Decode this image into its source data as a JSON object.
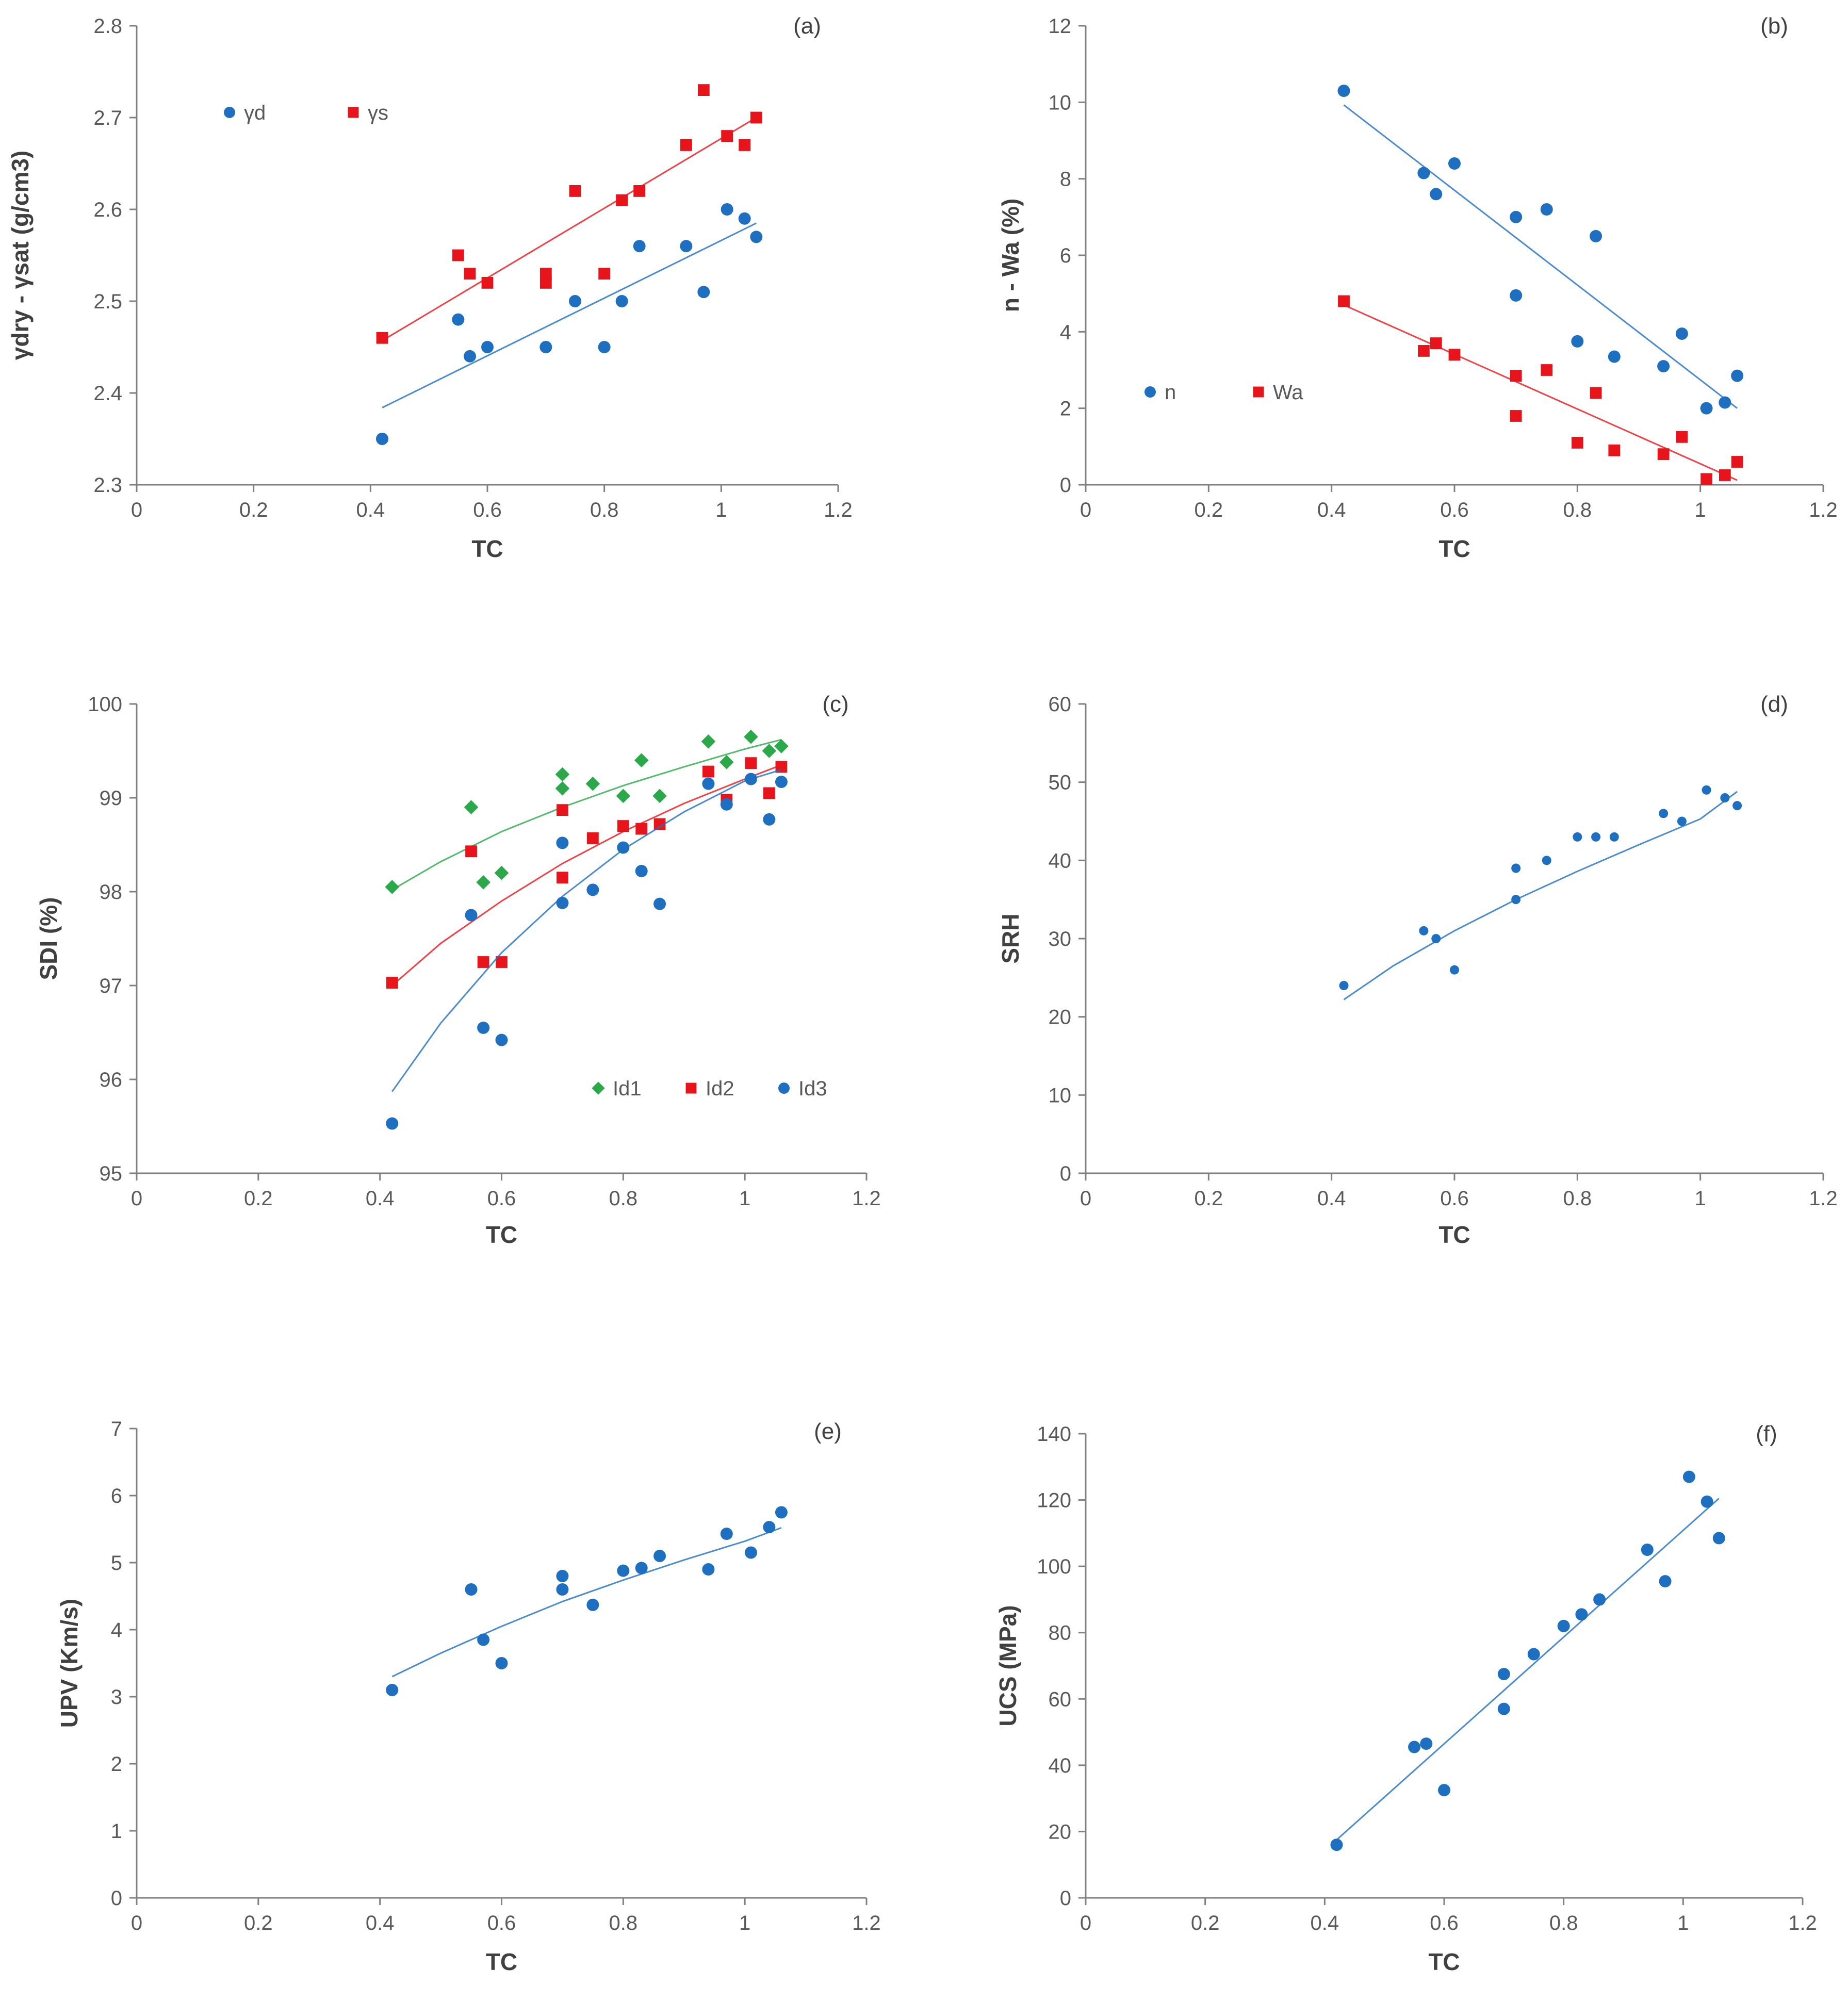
{
  "colors": {
    "blue": "#1F6FC0",
    "red": "#E8141B",
    "green": "#2BA84A",
    "axis": "#808080",
    "text": "#595959"
  },
  "chart_data": [
    {
      "id": "a",
      "type": "scatter",
      "label": "(a)",
      "xlabel": "TC",
      "ylabel": "γdry - γsat (g/cm3)",
      "xlim": [
        0,
        1.2
      ],
      "xticks": [
        0,
        0.2,
        0.4,
        0.6,
        0.8,
        1,
        1.2
      ],
      "xtick_labels": [
        "0",
        "0.2",
        "0.4",
        "0.6",
        "0.8",
        "1",
        "1.2"
      ],
      "ylim": [
        2.3,
        2.8
      ],
      "yticks": [
        2.3,
        2.4,
        2.5,
        2.6,
        2.7,
        2.8
      ],
      "ytick_labels": [
        "2.3",
        "2.4",
        "2.5",
        "2.6",
        "2.7",
        "2.8"
      ],
      "legend": {
        "placement": "top-left",
        "entries": [
          {
            "name": "γd",
            "marker": "circle",
            "color": "#1F6FC0"
          },
          {
            "name": "γs",
            "marker": "square",
            "color": "#E8141B"
          }
        ]
      },
      "series": [
        {
          "name": "γd",
          "marker": "circle",
          "color": "#1F6FC0",
          "x": [
            0.42,
            0.55,
            0.57,
            0.6,
            0.7,
            0.75,
            0.8,
            0.83,
            0.86,
            0.94,
            0.97,
            1.01,
            1.04,
            1.06
          ],
          "y": [
            2.35,
            2.48,
            2.44,
            2.45,
            2.45,
            2.5,
            2.45,
            2.5,
            2.56,
            2.56,
            2.51,
            2.6,
            2.59,
            2.57
          ],
          "trend": {
            "kind": "linear",
            "x": [
              0.42,
              1.06
            ],
            "y": [
              2.384,
              2.585
            ]
          }
        },
        {
          "name": "γs",
          "marker": "square",
          "color": "#E8141B",
          "x": [
            0.42,
            0.55,
            0.57,
            0.6,
            0.7,
            0.7,
            0.75,
            0.8,
            0.83,
            0.86,
            0.94,
            0.97,
            1.01,
            1.04,
            1.06
          ],
          "y": [
            2.46,
            2.55,
            2.53,
            2.52,
            2.53,
            2.52,
            2.62,
            2.53,
            2.61,
            2.62,
            2.67,
            2.73,
            2.68,
            2.67,
            2.7
          ],
          "trend": {
            "kind": "linear",
            "x": [
              0.42,
              1.06
            ],
            "y": [
              2.457,
              2.7
            ]
          }
        }
      ]
    },
    {
      "id": "b",
      "type": "scatter",
      "label": "(b)",
      "xlabel": "TC",
      "ylabel": "n - Wa (%)",
      "xlim": [
        0,
        1.2
      ],
      "xticks": [
        0,
        0.2,
        0.4,
        0.6,
        0.8,
        1,
        1.2
      ],
      "xtick_labels": [
        "0",
        "0.2",
        "0.4",
        "0.6",
        "0.8",
        "1",
        "1.2"
      ],
      "ylim": [
        0,
        12
      ],
      "yticks": [
        0,
        2,
        4,
        6,
        8,
        10,
        12
      ],
      "ytick_labels": [
        "0",
        "2",
        "4",
        "6",
        "8",
        "10",
        "12"
      ],
      "legend": {
        "placement": "bottom-left",
        "entries": [
          {
            "name": "n",
            "marker": "circle",
            "color": "#1F6FC0"
          },
          {
            "name": "Wa",
            "marker": "square",
            "color": "#E8141B"
          }
        ]
      },
      "series": [
        {
          "name": "n",
          "marker": "circle",
          "color": "#1F6FC0",
          "x": [
            0.42,
            0.55,
            0.57,
            0.6,
            0.7,
            0.7,
            0.75,
            0.8,
            0.83,
            0.86,
            0.94,
            0.97,
            1.01,
            1.04,
            1.06
          ],
          "y": [
            10.3,
            8.15,
            7.6,
            8.4,
            7.0,
            4.95,
            7.2,
            3.75,
            6.5,
            3.35,
            3.1,
            3.95,
            2.0,
            2.15,
            2.85
          ],
          "trend": {
            "kind": "linear",
            "x": [
              0.42,
              1.06
            ],
            "y": [
              9.93,
              2.0
            ]
          }
        },
        {
          "name": "Wa",
          "marker": "square",
          "color": "#E8141B",
          "x": [
            0.42,
            0.55,
            0.57,
            0.6,
            0.7,
            0.7,
            0.75,
            0.8,
            0.83,
            0.86,
            0.94,
            0.97,
            1.01,
            1.04,
            1.06
          ],
          "y": [
            4.8,
            3.5,
            3.7,
            3.4,
            2.85,
            1.8,
            3.0,
            1.1,
            2.4,
            0.9,
            0.8,
            1.25,
            0.15,
            0.25,
            0.6
          ],
          "trend": {
            "kind": "linear",
            "x": [
              0.42,
              1.06
            ],
            "y": [
              4.7,
              0.12
            ]
          }
        }
      ]
    },
    {
      "id": "c",
      "type": "scatter",
      "label": "(c)",
      "xlabel": "TC",
      "ylabel": "SDI (%)",
      "xlim": [
        0,
        1.2
      ],
      "xticks": [
        0,
        0.2,
        0.4,
        0.6,
        0.8,
        1,
        1.2
      ],
      "xtick_labels": [
        "0",
        "0.2",
        "0.4",
        "0.6",
        "0.8",
        "1",
        "1.2"
      ],
      "ylim": [
        95,
        100
      ],
      "yticks": [
        95,
        96,
        97,
        98,
        99,
        100
      ],
      "ytick_labels": [
        "95",
        "96",
        "97",
        "98",
        "99",
        "100"
      ],
      "legend": {
        "placement": "bottom-right",
        "entries": [
          {
            "name": "Id1",
            "marker": "diamond",
            "color": "#2BA84A"
          },
          {
            "name": "Id2",
            "marker": "square",
            "color": "#E8141B"
          },
          {
            "name": "Id3",
            "marker": "circle",
            "color": "#1F6FC0"
          }
        ]
      },
      "series": [
        {
          "name": "Id1",
          "marker": "diamond",
          "color": "#2BA84A",
          "x": [
            0.42,
            0.55,
            0.57,
            0.6,
            0.7,
            0.7,
            0.75,
            0.8,
            0.83,
            0.86,
            0.94,
            0.97,
            1.01,
            1.04,
            1.06
          ],
          "y": [
            98.05,
            98.9,
            98.1,
            98.2,
            99.25,
            99.1,
            99.15,
            99.02,
            99.4,
            99.02,
            99.6,
            99.38,
            99.65,
            99.5,
            99.55
          ],
          "trend": {
            "kind": "log",
            "x": [
              0.42,
              0.5,
              0.6,
              0.7,
              0.8,
              0.9,
              1.0,
              1.06
            ],
            "y": [
              98.02,
              98.32,
              98.64,
              98.9,
              99.13,
              99.33,
              99.52,
              99.62
            ]
          }
        },
        {
          "name": "Id2",
          "marker": "square",
          "color": "#E8141B",
          "x": [
            0.42,
            0.55,
            0.57,
            0.6,
            0.7,
            0.7,
            0.75,
            0.8,
            0.83,
            0.86,
            0.94,
            0.97,
            1.01,
            1.04,
            1.06
          ],
          "y": [
            97.03,
            98.43,
            97.25,
            97.25,
            98.87,
            98.15,
            98.57,
            98.7,
            98.67,
            98.72,
            99.28,
            98.98,
            99.37,
            99.05,
            99.33
          ],
          "trend": {
            "kind": "log",
            "x": [
              0.42,
              0.5,
              0.6,
              0.7,
              0.8,
              0.9,
              1.0,
              1.06
            ],
            "y": [
              97.0,
              97.45,
              97.9,
              98.3,
              98.64,
              98.94,
              99.2,
              99.35
            ]
          }
        },
        {
          "name": "Id3",
          "marker": "circle",
          "color": "#1F6FC0",
          "x": [
            0.42,
            0.55,
            0.57,
            0.6,
            0.7,
            0.7,
            0.75,
            0.8,
            0.83,
            0.86,
            0.94,
            0.97,
            1.01,
            1.04,
            1.06
          ],
          "y": [
            95.53,
            97.75,
            96.55,
            96.42,
            98.52,
            97.88,
            98.02,
            98.47,
            98.22,
            97.87,
            99.15,
            98.93,
            99.2,
            98.77,
            99.17
          ],
          "trend": {
            "kind": "log",
            "x": [
              0.42,
              0.5,
              0.6,
              0.7,
              0.8,
              0.9,
              1.0,
              1.06
            ],
            "y": [
              95.87,
              96.6,
              97.35,
              97.95,
              98.45,
              98.85,
              99.18,
              99.3
            ]
          }
        }
      ]
    },
    {
      "id": "d",
      "type": "scatter",
      "label": "(d)",
      "xlabel": "TC",
      "ylabel": "SRH",
      "xlim": [
        0,
        1.2
      ],
      "xticks": [
        0,
        0.2,
        0.4,
        0.6,
        0.8,
        1,
        1.2
      ],
      "xtick_labels": [
        "0",
        "0.2",
        "0.4",
        "0.6",
        "0.8",
        "1",
        "1.2"
      ],
      "ylim": [
        0,
        60
      ],
      "yticks": [
        0,
        10,
        20,
        30,
        40,
        50,
        60
      ],
      "ytick_labels": [
        "0",
        "10",
        "20",
        "30",
        "40",
        "50",
        "60"
      ],
      "legend": null,
      "series": [
        {
          "name": "SRH",
          "marker": "circle",
          "color": "#1F6FC0",
          "marker_size": "small",
          "x": [
            0.42,
            0.55,
            0.57,
            0.6,
            0.7,
            0.7,
            0.75,
            0.8,
            0.83,
            0.86,
            0.94,
            0.97,
            1.01,
            1.04,
            1.06
          ],
          "y": [
            24,
            31,
            30,
            26,
            39,
            35,
            40,
            43,
            43,
            43,
            46,
            45,
            49,
            48,
            47
          ],
          "trend": {
            "kind": "log",
            "x": [
              0.42,
              0.5,
              0.6,
              0.7,
              0.8,
              0.9,
              1.0,
              1.06
            ],
            "y": [
              22.2,
              26.5,
              31.0,
              35.0,
              38.6,
              42.0,
              45.3,
              48.8
            ]
          }
        }
      ]
    },
    {
      "id": "e",
      "type": "scatter",
      "label": "(e)",
      "xlabel": "TC",
      "ylabel": "UPV (Km/s)",
      "xlim": [
        0,
        1.2
      ],
      "xticks": [
        0,
        0.2,
        0.4,
        0.6,
        0.8,
        1,
        1.2
      ],
      "xtick_labels": [
        "0",
        "0.2",
        "0.4",
        "0.6",
        "0.8",
        "1",
        "1.2"
      ],
      "ylim": [
        0,
        7
      ],
      "yticks": [
        0,
        1,
        2,
        3,
        4,
        5,
        6,
        7
      ],
      "ytick_labels": [
        "0",
        "1",
        "2",
        "3",
        "4",
        "5",
        "6",
        "7"
      ],
      "legend": null,
      "series": [
        {
          "name": "UPV",
          "marker": "circle",
          "color": "#1F6FC0",
          "x": [
            0.42,
            0.55,
            0.57,
            0.6,
            0.7,
            0.7,
            0.75,
            0.8,
            0.83,
            0.86,
            0.94,
            0.97,
            1.01,
            1.04,
            1.06
          ],
          "y": [
            3.1,
            4.6,
            3.85,
            3.5,
            4.8,
            4.6,
            4.37,
            4.88,
            4.92,
            5.1,
            4.9,
            5.43,
            5.15,
            5.53,
            5.75
          ],
          "trend": {
            "kind": "log",
            "x": [
              0.42,
              0.5,
              0.6,
              0.7,
              0.8,
              0.9,
              1.0,
              1.06
            ],
            "y": [
              3.3,
              3.65,
              4.05,
              4.42,
              4.74,
              5.04,
              5.32,
              5.52
            ]
          }
        }
      ]
    },
    {
      "id": "f",
      "type": "scatter",
      "label": "(f)",
      "xlabel": "TC",
      "ylabel": "UCS (MPa)",
      "xlim": [
        0,
        1.2
      ],
      "xticks": [
        0,
        0.2,
        0.4,
        0.6,
        0.8,
        1,
        1.2
      ],
      "xtick_labels": [
        "0",
        "0.2",
        "0.4",
        "0.6",
        "0.8",
        "1",
        "1.2"
      ],
      "ylim": [
        0,
        140
      ],
      "yticks": [
        0,
        20,
        40,
        60,
        80,
        100,
        120,
        140
      ],
      "ytick_labels": [
        "0",
        "20",
        "40",
        "60",
        "80",
        "100",
        "120",
        "140"
      ],
      "legend": null,
      "series": [
        {
          "name": "UCS",
          "marker": "circle",
          "color": "#1F6FC0",
          "x": [
            0.42,
            0.55,
            0.57,
            0.6,
            0.7,
            0.7,
            0.75,
            0.8,
            0.83,
            0.86,
            0.94,
            0.97,
            1.01,
            1.04,
            1.06
          ],
          "y": [
            16,
            45.5,
            46.5,
            32.5,
            67.5,
            57,
            73.5,
            82,
            85.5,
            90,
            105,
            95.5,
            127,
            119.5,
            108.5
          ],
          "trend": {
            "kind": "linear",
            "x": [
              0.42,
              1.06
            ],
            "y": [
              17.5,
              120.5
            ]
          }
        }
      ]
    }
  ]
}
